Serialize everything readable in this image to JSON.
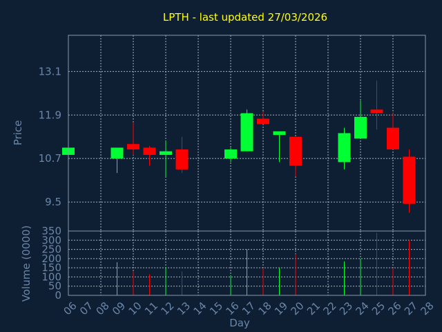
{
  "chart_data": {
    "type": "candlestick",
    "title": "LPTH - last updated 27/03/2026",
    "xlabel": "Day",
    "price_ylabel": "Price",
    "volume_ylabel": "Volume (0000)",
    "x_ticks": [
      "06",
      "07",
      "08",
      "09",
      "10",
      "11",
      "12",
      "13",
      "14",
      "15",
      "16",
      "17",
      "18",
      "19",
      "20",
      "21",
      "22",
      "23",
      "24",
      "25",
      "26",
      "27",
      "28"
    ],
    "price_ticks": [
      "9.5",
      "10.7",
      "11.9",
      "13.1"
    ],
    "price_ylim": [
      8.7,
      14.1
    ],
    "volume_ticks": [
      "0",
      "50",
      "100",
      "150",
      "200",
      "250",
      "300",
      "350"
    ],
    "volume_ylim": [
      0,
      350
    ],
    "grid": true,
    "colors": {
      "up": "#00ff33",
      "down": "#ff0000",
      "background": "#0f1f33",
      "title": "#ffff00",
      "axis_text": "#6a86a8"
    },
    "candles": [
      {
        "day": "06",
        "open": 10.8,
        "close": 11.0,
        "high": 11.0,
        "low": 10.8,
        "volume": 0
      },
      {
        "day": "09",
        "open": 10.7,
        "close": 11.0,
        "high": 11.0,
        "low": 10.3,
        "volume": 180
      },
      {
        "day": "10",
        "open": 11.1,
        "close": 10.95,
        "high": 11.7,
        "low": 10.8,
        "volume": 130
      },
      {
        "day": "11",
        "open": 11.0,
        "close": 10.8,
        "high": 11.05,
        "low": 10.5,
        "volume": 115
      },
      {
        "day": "12",
        "open": 10.8,
        "close": 10.9,
        "high": 11.2,
        "low": 10.2,
        "volume": 155
      },
      {
        "day": "13",
        "open": 10.95,
        "close": 10.4,
        "high": 11.3,
        "low": 10.3,
        "volume": 130
      },
      {
        "day": "16",
        "open": 10.7,
        "close": 10.95,
        "high": 11.0,
        "low": 10.6,
        "volume": 110
      },
      {
        "day": "17",
        "open": 10.9,
        "close": 11.95,
        "high": 12.05,
        "low": 10.9,
        "volume": 250
      },
      {
        "day": "18",
        "open": 11.8,
        "close": 11.65,
        "high": 12.0,
        "low": 11.65,
        "volume": 150
      },
      {
        "day": "19",
        "open": 11.35,
        "close": 11.45,
        "high": 11.45,
        "low": 10.6,
        "volume": 150
      },
      {
        "day": "20",
        "open": 11.3,
        "close": 10.5,
        "high": 11.3,
        "low": 10.2,
        "volume": 225
      },
      {
        "day": "23",
        "open": 10.6,
        "close": 11.4,
        "high": 11.55,
        "low": 10.4,
        "volume": 185
      },
      {
        "day": "24",
        "open": 11.25,
        "close": 11.85,
        "high": 12.3,
        "low": 11.25,
        "volume": 200
      },
      {
        "day": "25",
        "open": 12.05,
        "close": 11.95,
        "high": 12.85,
        "low": 11.5,
        "volume": 340
      },
      {
        "day": "26",
        "open": 11.55,
        "close": 10.95,
        "high": 11.95,
        "low": 10.95,
        "volume": 150
      },
      {
        "day": "27",
        "open": 10.75,
        "close": 9.45,
        "high": 10.95,
        "low": 9.2,
        "volume": 300
      }
    ]
  }
}
